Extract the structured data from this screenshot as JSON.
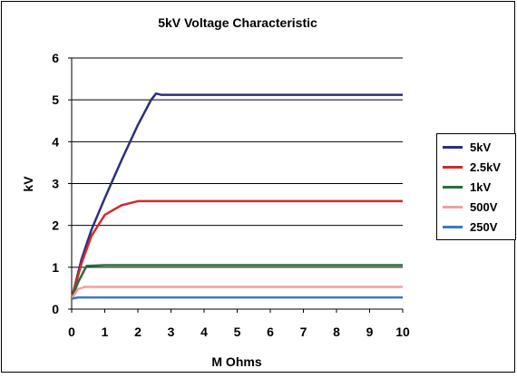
{
  "chart_data": {
    "type": "line",
    "title": "5kV Voltage Characteristic",
    "xlabel": "M Ohms",
    "ylabel": "kV",
    "xlim": [
      0,
      10
    ],
    "ylim": [
      0,
      6
    ],
    "x_ticks": [
      "0",
      "1",
      "2",
      "3",
      "4",
      "5",
      "6",
      "7",
      "8",
      "9",
      "10"
    ],
    "y_ticks": [
      "0",
      "1",
      "2",
      "3",
      "4",
      "5",
      "6"
    ],
    "grid": "horizontal",
    "legend_position": "right",
    "series": [
      {
        "name": "5kV",
        "color": "#2b2f7e",
        "points": [
          [
            0,
            0.25
          ],
          [
            0.3,
            1.2
          ],
          [
            0.6,
            1.9
          ],
          [
            1.0,
            2.65
          ],
          [
            1.5,
            3.55
          ],
          [
            2.0,
            4.4
          ],
          [
            2.4,
            5.0
          ],
          [
            2.55,
            5.15
          ],
          [
            2.7,
            5.12
          ],
          [
            3.0,
            5.12
          ],
          [
            10,
            5.12
          ]
        ]
      },
      {
        "name": "2.5kV",
        "color": "#d42a2a",
        "points": [
          [
            0,
            0.25
          ],
          [
            0.3,
            1.1
          ],
          [
            0.6,
            1.75
          ],
          [
            1.0,
            2.25
          ],
          [
            1.5,
            2.48
          ],
          [
            2.0,
            2.58
          ],
          [
            2.5,
            2.58
          ],
          [
            10,
            2.58
          ]
        ]
      },
      {
        "name": "1kV",
        "color": "#2a6e3c",
        "points": [
          [
            0,
            0.25
          ],
          [
            0.2,
            0.65
          ],
          [
            0.45,
            1.03
          ],
          [
            1.0,
            1.05
          ],
          [
            10,
            1.05
          ]
        ]
      },
      {
        "name": "500V",
        "color": "#f0a0a0",
        "points": [
          [
            0,
            0.25
          ],
          [
            0.2,
            0.48
          ],
          [
            0.4,
            0.53
          ],
          [
            10,
            0.53
          ]
        ]
      },
      {
        "name": "250V",
        "color": "#3b78c4",
        "points": [
          [
            0,
            0.25
          ],
          [
            0.2,
            0.28
          ],
          [
            10,
            0.28
          ]
        ]
      }
    ]
  }
}
